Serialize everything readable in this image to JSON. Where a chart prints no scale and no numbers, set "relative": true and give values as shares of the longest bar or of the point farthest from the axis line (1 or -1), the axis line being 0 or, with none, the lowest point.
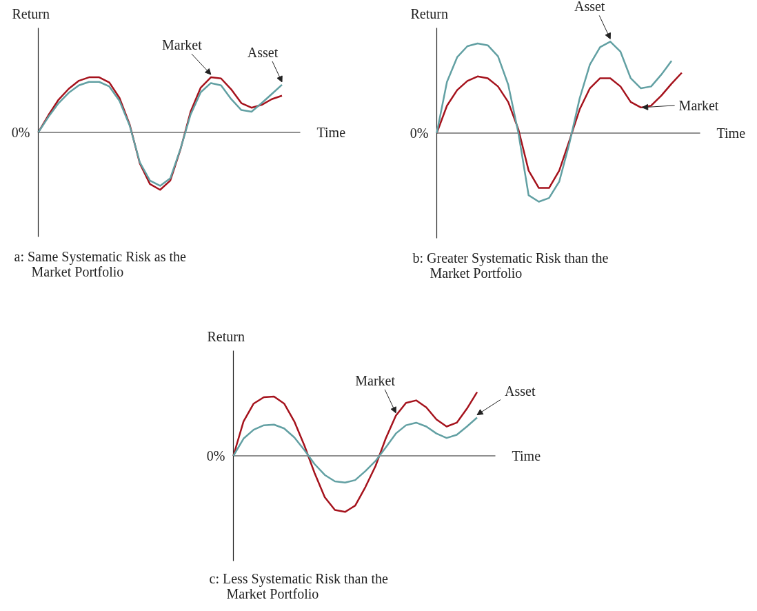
{
  "chart_data": [
    {
      "type": "line",
      "relative": true,
      "title": "a:  Same Systematic Risk as the Market Portfolio",
      "xlabel": "Time",
      "ylabel": "Return",
      "annotations": [
        "0%"
      ],
      "categories": [
        null,
        null,
        null,
        null,
        null,
        null,
        null,
        null,
        null,
        null,
        null,
        null,
        null,
        null,
        null,
        null,
        null,
        null,
        null,
        null,
        null,
        null,
        null,
        null,
        null
      ],
      "series": [
        {
          "name": "Market",
          "color": "#a5121c",
          "values": [
            0,
            0.3,
            0.57,
            0.76,
            0.9,
            0.96,
            0.96,
            0.87,
            0.6,
            0.14,
            -0.54,
            -0.9,
            -1,
            -0.84,
            -0.3,
            0.36,
            0.78,
            0.96,
            0.94,
            0.75,
            0.51,
            0.43,
            0.48,
            0.58,
            0.64
          ]
        },
        {
          "name": "Asset",
          "color": "#62a0a3",
          "values": [
            0,
            0.27,
            0.51,
            0.69,
            0.82,
            0.88,
            0.88,
            0.8,
            0.55,
            0.12,
            -0.52,
            -0.84,
            -0.93,
            -0.8,
            -0.29,
            0.31,
            0.7,
            0.86,
            0.82,
            0.58,
            0.39,
            0.36,
            0.51,
            0.67,
            0.83
          ]
        }
      ]
    },
    {
      "type": "line",
      "relative": true,
      "title": "b:  Greater Systematic Risk than the Market Portfolio",
      "xlabel": "Time",
      "ylabel": "Return",
      "annotations": [
        "0%"
      ],
      "categories": [
        null,
        null,
        null,
        null,
        null,
        null,
        null,
        null,
        null,
        null,
        null,
        null,
        null,
        null,
        null,
        null,
        null,
        null,
        null,
        null,
        null,
        null,
        null,
        null,
        null
      ],
      "series": [
        {
          "name": "Market",
          "color": "#a5121c",
          "values": [
            0,
            0.3,
            0.47,
            0.57,
            0.62,
            0.6,
            0.51,
            0.34,
            0.04,
            -0.41,
            -0.6,
            -0.6,
            -0.41,
            -0.08,
            0.26,
            0.49,
            0.6,
            0.6,
            0.51,
            0.34,
            0.28,
            0.3,
            0.41,
            0.54,
            0.66
          ]
        },
        {
          "name": "Asset",
          "color": "#62a0a3",
          "values": [
            0,
            0.56,
            0.83,
            0.95,
            0.98,
            0.96,
            0.84,
            0.53,
            0,
            -0.68,
            -0.75,
            -0.71,
            -0.53,
            -0.11,
            0.38,
            0.75,
            0.94,
            1,
            0.89,
            0.6,
            0.49,
            0.51,
            0.64,
            0.79,
            null
          ]
        }
      ]
    },
    {
      "type": "line",
      "relative": true,
      "title": "c:  Less Systematic Risk than the Market Portfolio",
      "xlabel": "Time",
      "ylabel": "Return",
      "annotations": [
        "0%"
      ],
      "categories": [
        null,
        null,
        null,
        null,
        null,
        null,
        null,
        null,
        null,
        null,
        null,
        null,
        null,
        null,
        null,
        null,
        null,
        null,
        null,
        null,
        null,
        null,
        null,
        null,
        null
      ],
      "series": [
        {
          "name": "Market",
          "color": "#a5121c",
          "values": [
            0,
            0.54,
            0.82,
            0.92,
            0.93,
            0.82,
            0.54,
            0.16,
            -0.27,
            -0.65,
            -0.85,
            -0.88,
            -0.78,
            -0.49,
            -0.16,
            0.27,
            0.63,
            0.83,
            0.87,
            0.76,
            0.57,
            0.46,
            0.52,
            0.74,
            1
          ]
        },
        {
          "name": "Asset",
          "color": "#62a0a3",
          "values": [
            0,
            0.27,
            0.41,
            0.48,
            0.49,
            0.43,
            0.29,
            0.09,
            -0.13,
            -0.3,
            -0.4,
            -0.42,
            -0.38,
            -0.24,
            -0.08,
            0.13,
            0.35,
            0.48,
            0.52,
            0.46,
            0.35,
            0.28,
            0.33,
            0.46,
            0.6
          ]
        }
      ]
    }
  ]
}
